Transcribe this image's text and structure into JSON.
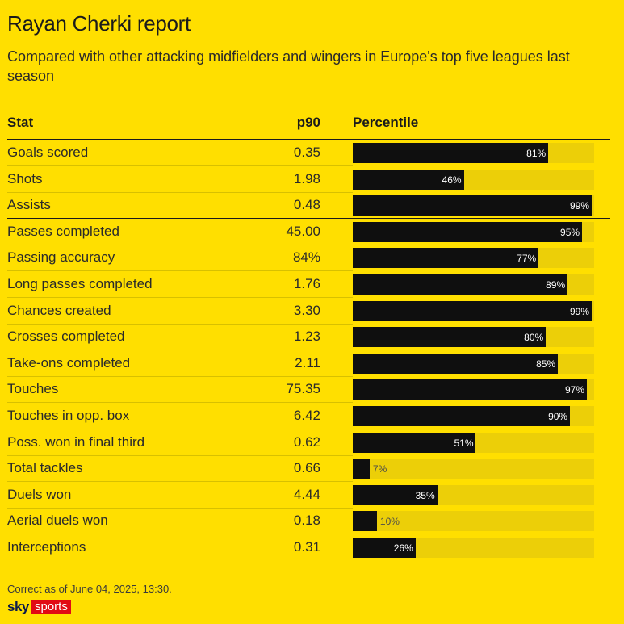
{
  "title": "Rayan Cherki report",
  "subtitle": "Compared with other attacking midfielders and wingers in Europe's top five leagues last season",
  "headers": {
    "stat": "Stat",
    "p90": "p90",
    "percentile": "Percentile"
  },
  "footer": "Correct as of June 04, 2025, 13:30.",
  "logo": {
    "sky": "sky",
    "sports": "sports"
  },
  "colors": {
    "background": "#ffdf00",
    "bar": "#0f0f0f",
    "track": "#eccf08",
    "logo_red": "#e10a14"
  },
  "chart_data": {
    "type": "bar",
    "orientation": "horizontal",
    "xlim": [
      0,
      100
    ],
    "categories": [
      "Goals scored",
      "Shots",
      "Assists",
      "Passes completed",
      "Passing accuracy",
      "Long passes completed",
      "Chances created",
      "Crosses completed",
      "Take-ons completed",
      "Touches",
      "Touches in opp. box",
      "Poss. won in final third",
      "Total tackles",
      "Duels won",
      "Aerial duels won",
      "Interceptions"
    ],
    "p90": [
      "0.35",
      "1.98",
      "0.48",
      "45.00",
      "84%",
      "1.76",
      "3.30",
      "1.23",
      "2.11",
      "75.35",
      "6.42",
      "0.62",
      "0.66",
      "4.44",
      "0.18",
      "0.31"
    ],
    "values": [
      81,
      46,
      99,
      95,
      77,
      89,
      99,
      80,
      85,
      97,
      90,
      51,
      7,
      35,
      10,
      26
    ],
    "value_labels": [
      "81%",
      "46%",
      "99%",
      "95%",
      "77%",
      "89%",
      "99%",
      "80%",
      "85%",
      "97%",
      "90%",
      "51%",
      "7%",
      "35%",
      "10%",
      "26%"
    ],
    "group_ends": [
      2,
      7,
      10
    ]
  }
}
